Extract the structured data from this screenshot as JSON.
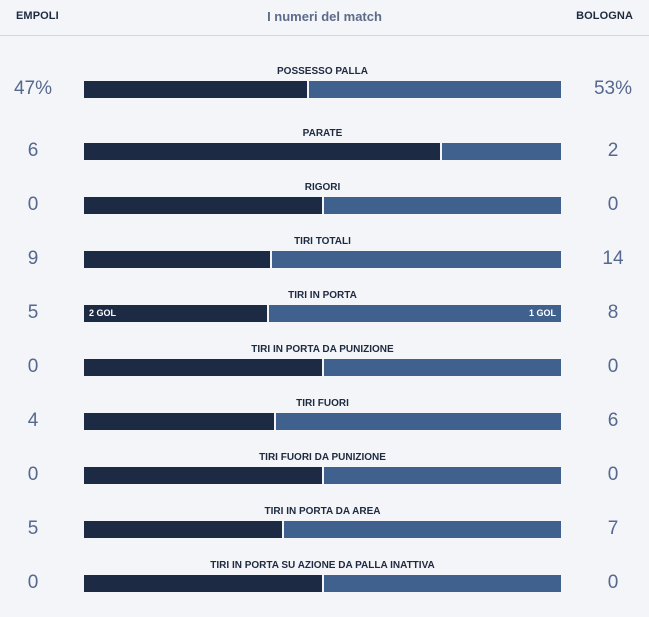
{
  "header": {
    "home_team": "EMPOLI",
    "away_team": "BOLOGNA",
    "title": "I numeri del match"
  },
  "colors": {
    "home_bar": "#1c2a44",
    "away_bar": "#40608e",
    "value_text": "#55688f"
  },
  "stats": [
    {
      "label": "POSSESSO PALLA",
      "home": "47%",
      "away": "53%",
      "home_share": 0.47
    },
    {
      "label": "PARATE",
      "home": "6",
      "away": "2",
      "home_share": 0.75
    },
    {
      "label": "RIGORI",
      "home": "0",
      "away": "0",
      "home_share": 0.5
    },
    {
      "label": "TIRI TOTALI",
      "home": "9",
      "away": "14",
      "home_share": 0.3913
    },
    {
      "label": "TIRI IN PORTA",
      "home": "5",
      "away": "8",
      "home_share": 0.3846,
      "home_goals": "2 GOL",
      "away_goals": "1 GOL"
    },
    {
      "label": "TIRI IN PORTA DA PUNIZIONE",
      "home": "0",
      "away": "0",
      "home_share": 0.5
    },
    {
      "label": "TIRI FUORI",
      "home": "4",
      "away": "6",
      "home_share": 0.4
    },
    {
      "label": "TIRI FUORI DA PUNIZIONE",
      "home": "0",
      "away": "0",
      "home_share": 0.5
    },
    {
      "label": "TIRI IN PORTA DA AREA",
      "home": "5",
      "away": "7",
      "home_share": 0.4167
    },
    {
      "label": "TIRI IN PORTA SU AZIONE DA PALLA INATTIVA",
      "home": "0",
      "away": "0",
      "home_share": 0.5
    }
  ]
}
